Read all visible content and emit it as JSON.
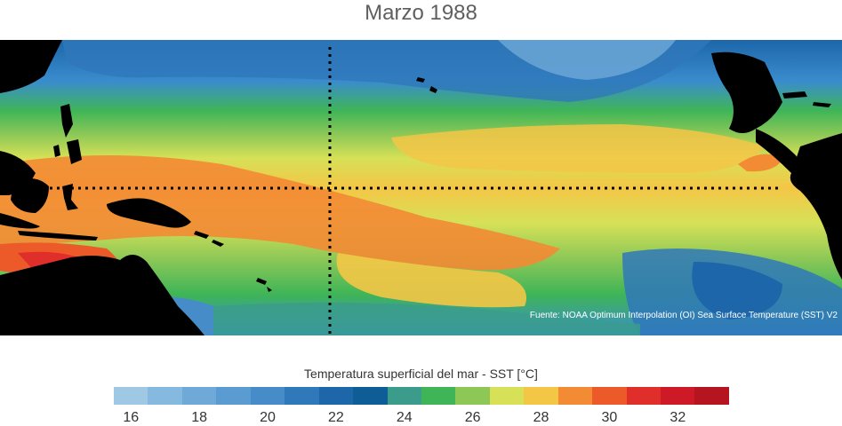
{
  "title": "Marzo 1988",
  "source_note": "Fuente: NOAA Optimum Interpolation (OI) Sea Surface Temperature (SST) V2",
  "colorbar": {
    "label": "Temperatura superficial del mar - SST  [°C]",
    "colors": [
      "#9ec8e4",
      "#86b9df",
      "#6fa9d7",
      "#5a9bd1",
      "#468cc8",
      "#2f78ba",
      "#1c66a9",
      "#0f5d97",
      "#3b9c8c",
      "#3fb557",
      "#8dc857",
      "#d6e157",
      "#f4c646",
      "#f38a34",
      "#ec5a2a",
      "#e02e2a",
      "#ce1a26",
      "#b5151e"
    ],
    "ticks": [
      "16",
      "18",
      "20",
      "22",
      "24",
      "26",
      "28",
      "30",
      "32"
    ]
  }
}
